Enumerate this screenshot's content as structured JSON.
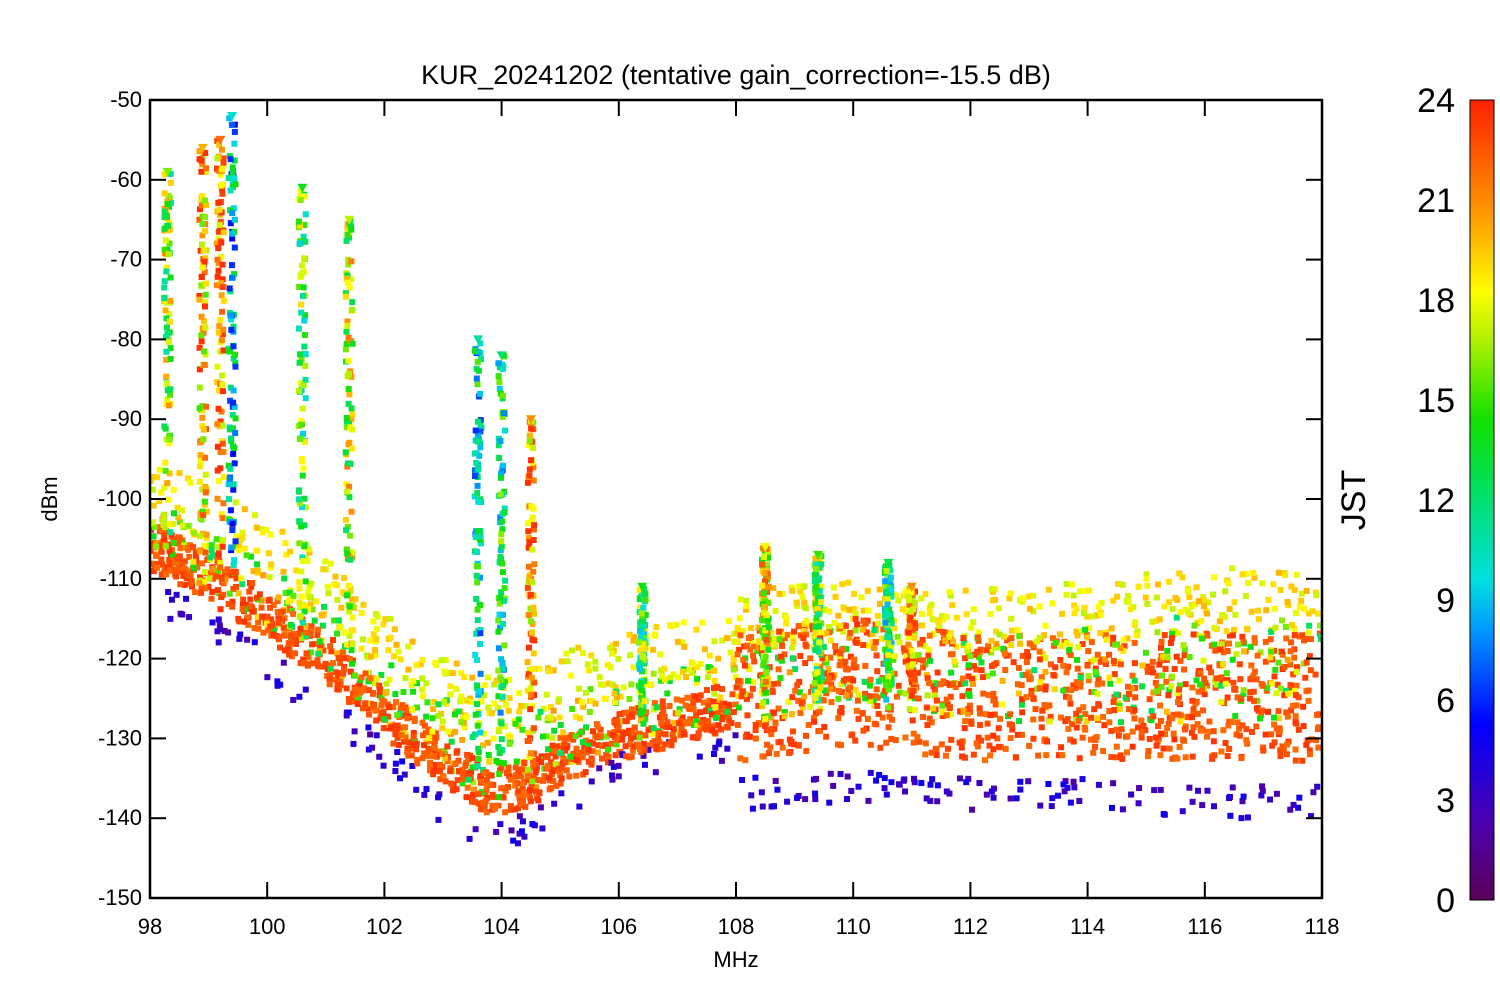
{
  "chart_data": {
    "type": "scatter",
    "title": "KUR_20241202 (tentative gain_correction=-15.5 dB)",
    "xlabel": "MHz",
    "ylabel": "dBm",
    "xlim": [
      98,
      118
    ],
    "ylim": [
      -150,
      -50
    ],
    "x_ticks": [
      98,
      100,
      102,
      104,
      106,
      108,
      110,
      112,
      114,
      116,
      118
    ],
    "y_ticks": [
      -50,
      -60,
      -70,
      -80,
      -90,
      -100,
      -110,
      -120,
      -130,
      -140,
      -150
    ],
    "grid": false,
    "colorbar": {
      "title": "JST",
      "range": [
        0,
        24
      ],
      "ticks": [
        0,
        3,
        6,
        9,
        12,
        15,
        18,
        21,
        24
      ],
      "colormap": "rainbow"
    },
    "noise_floor": {
      "x": [
        98,
        99,
        100,
        101,
        102,
        103,
        103.8,
        104.5,
        105,
        106,
        107,
        108,
        108.1,
        110,
        112,
        114,
        116,
        118
      ],
      "y_night": [
        -112,
        -116,
        -121,
        -126,
        -132,
        -139,
        -143,
        -141,
        -138,
        -134,
        -132,
        -131,
        -137,
        -136,
        -137,
        -137,
        -138,
        -138
      ],
      "y_day": [
        -107,
        -111,
        -116,
        -121,
        -128,
        -134,
        -138,
        -137,
        -134,
        -131,
        -129,
        -127,
        -128,
        -126,
        -128,
        -128,
        -128,
        -128
      ],
      "y_top": [
        -100,
        -104,
        -108,
        -113,
        -120,
        -125,
        -128,
        -127,
        -125,
        -122,
        -121,
        -120,
        -117,
        -116,
        -117,
        -116,
        -114,
        -115
      ]
    },
    "peaks": [
      {
        "x": 98.3,
        "y": -59,
        "jst": 16
      },
      {
        "x": 98.9,
        "y": -56,
        "jst": 20
      },
      {
        "x": 99.2,
        "y": -55,
        "jst": 22
      },
      {
        "x": 99.4,
        "y": -52,
        "jst": 10
      },
      {
        "x": 100.6,
        "y": -61,
        "jst": 14
      },
      {
        "x": 101.4,
        "y": -65,
        "jst": 17
      },
      {
        "x": 103.6,
        "y": -80,
        "jst": 11
      },
      {
        "x": 104.0,
        "y": -82,
        "jst": 12
      },
      {
        "x": 104.5,
        "y": -90,
        "jst": 21
      },
      {
        "x": 106.4,
        "y": -111,
        "jst": 14
      },
      {
        "x": 108.5,
        "y": -106,
        "jst": 18
      },
      {
        "x": 109.4,
        "y": -107,
        "jst": 15
      },
      {
        "x": 110.6,
        "y": -108,
        "jst": 13
      },
      {
        "x": 111.0,
        "y": -111,
        "jst": 21
      }
    ]
  }
}
